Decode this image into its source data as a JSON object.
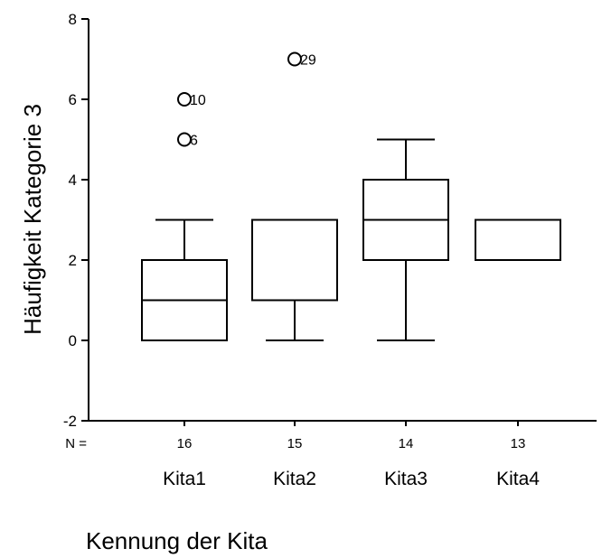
{
  "chart_data": {
    "type": "boxplot",
    "ylabel": "Häufigkeit Kategorie 3",
    "xlabel": "Kennung der Kita",
    "ylim": [
      -2,
      8
    ],
    "yticks": [
      -2,
      0,
      2,
      4,
      6,
      8
    ],
    "n_label": "N =",
    "categories": [
      "Kita1",
      "Kita2",
      "Kita3",
      "Kita4"
    ],
    "n_values": [
      "16",
      "15",
      "14",
      "13"
    ],
    "boxes": [
      {
        "category": "Kita1",
        "whisker_low": 0,
        "q1": 0,
        "median": 1,
        "q3": 2,
        "whisker_high": 3,
        "outliers": [
          {
            "value": 6,
            "label": "10"
          },
          {
            "value": 5,
            "label": "6"
          }
        ]
      },
      {
        "category": "Kita2",
        "whisker_low": 0,
        "q1": 1,
        "median": 3,
        "q3": 3,
        "whisker_high": 3,
        "outliers": [
          {
            "value": 7,
            "label": "29"
          }
        ]
      },
      {
        "category": "Kita3",
        "whisker_low": 0,
        "q1": 2,
        "median": 3,
        "q3": 4,
        "whisker_high": 5,
        "outliers": []
      },
      {
        "category": "Kita4",
        "whisker_low": 2,
        "q1": 2,
        "median": 3,
        "q3": 3,
        "whisker_high": 3,
        "outliers": []
      }
    ],
    "grid": false,
    "legend": "none"
  }
}
